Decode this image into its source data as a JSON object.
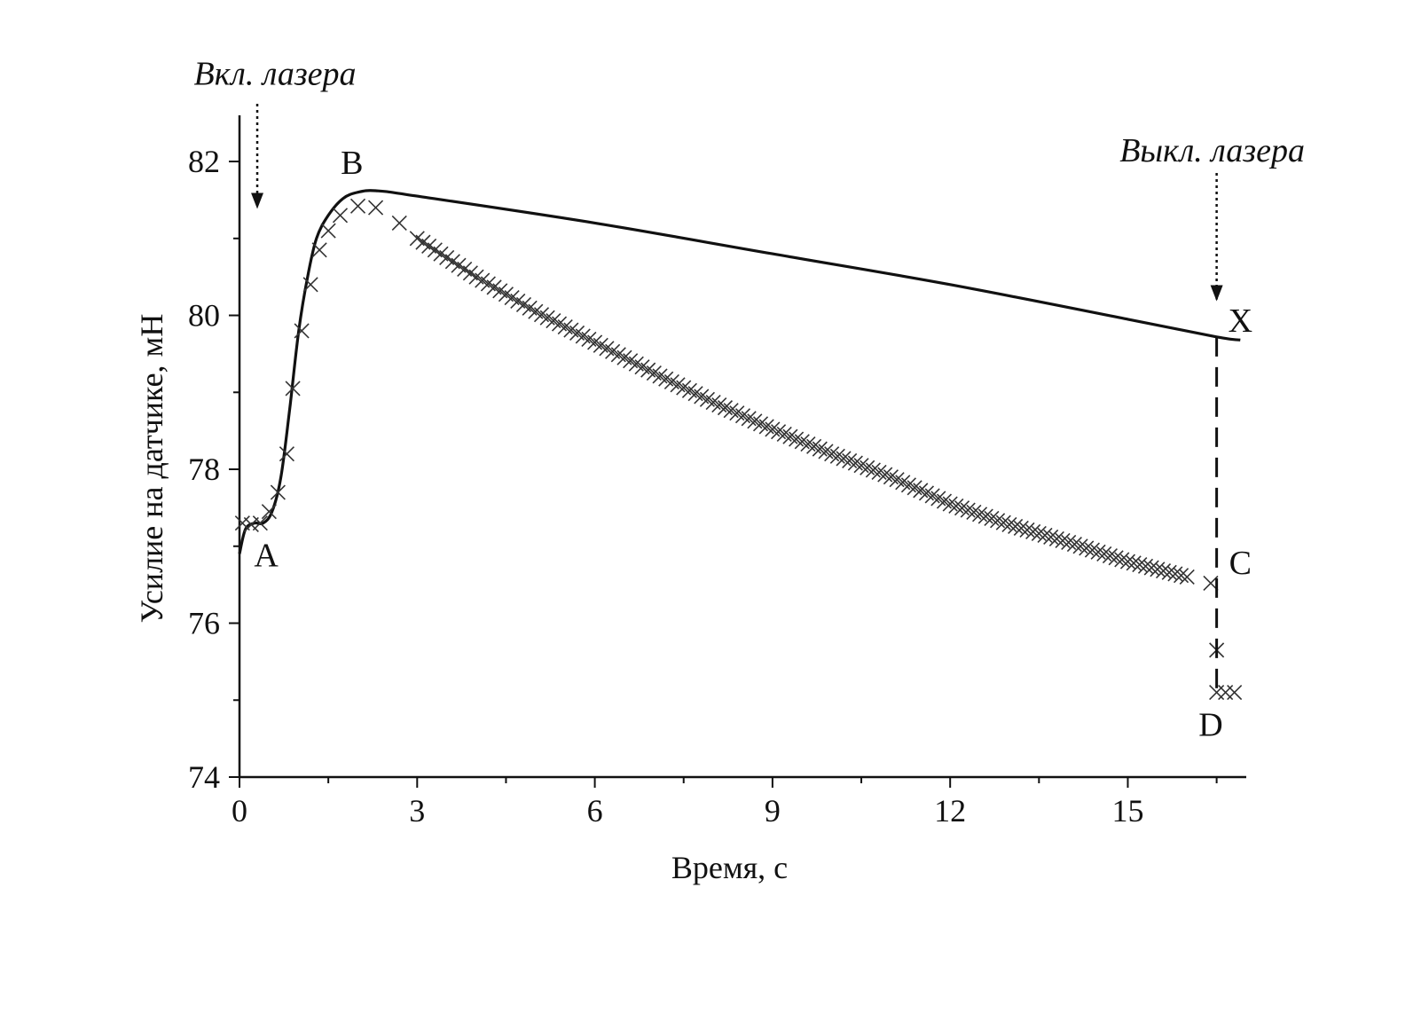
{
  "chart_data": {
    "type": "line",
    "xlabel": "Время, с",
    "ylabel": "Усилие на датчике, мН",
    "xlim": [
      0,
      17
    ],
    "ylim": [
      74,
      82.6
    ],
    "x_ticks": [
      0,
      3,
      6,
      9,
      12,
      15
    ],
    "x_tick_labels": [
      "0",
      "3",
      "6",
      "9",
      "12",
      "15"
    ],
    "y_ticks": [
      74,
      76,
      78,
      80,
      82
    ],
    "y_tick_labels": [
      "74",
      "76",
      "78",
      "80",
      "82"
    ],
    "grid": false,
    "legend": "none",
    "series": [
      {
        "style": "solid-line",
        "color": "#111111",
        "points": [
          [
            0,
            76.9
          ],
          [
            0.1,
            77.22
          ],
          [
            0.25,
            77.3
          ],
          [
            0.4,
            77.3
          ],
          [
            0.55,
            77.45
          ],
          [
            0.7,
            77.9
          ],
          [
            0.85,
            78.8
          ],
          [
            1.0,
            79.8
          ],
          [
            1.15,
            80.5
          ],
          [
            1.3,
            81.0
          ],
          [
            1.5,
            81.3
          ],
          [
            1.75,
            81.52
          ],
          [
            2.0,
            81.6
          ],
          [
            2.3,
            81.62
          ],
          [
            3,
            81.55
          ],
          [
            6,
            81.2
          ],
          [
            9,
            80.8
          ],
          [
            12,
            80.4
          ],
          [
            15,
            79.95
          ],
          [
            16.5,
            79.72
          ],
          [
            16.9,
            79.68
          ]
        ]
      },
      {
        "style": "x-markers",
        "color": "#333333",
        "points": [
          [
            0.05,
            77.3
          ],
          [
            0.2,
            77.28
          ],
          [
            0.35,
            77.3
          ],
          [
            0.5,
            77.45
          ],
          [
            0.65,
            77.7
          ],
          [
            0.8,
            78.2
          ],
          [
            0.9,
            79.05
          ],
          [
            1.05,
            79.8
          ],
          [
            1.2,
            80.4
          ],
          [
            1.35,
            80.85
          ],
          [
            1.5,
            81.1
          ],
          [
            1.7,
            81.3
          ],
          [
            2.0,
            81.42
          ],
          [
            2.3,
            81.4
          ],
          [
            2.7,
            81.2
          ],
          [
            3,
            81.0
          ],
          [
            4,
            80.5
          ],
          [
            5,
            80.05
          ],
          [
            6,
            79.65
          ],
          [
            7,
            79.25
          ],
          [
            8,
            78.87
          ],
          [
            9,
            78.52
          ],
          [
            10,
            78.2
          ],
          [
            11,
            77.9
          ],
          [
            12,
            77.55
          ],
          [
            13,
            77.28
          ],
          [
            14,
            77.05
          ],
          [
            15,
            76.8
          ],
          [
            16,
            76.6
          ],
          [
            16.4,
            76.52
          ],
          [
            16.5,
            75.65
          ],
          [
            16.5,
            75.1
          ],
          [
            16.65,
            75.1
          ],
          [
            16.8,
            75.1
          ]
        ]
      },
      {
        "style": "dashed-line",
        "color": "#111111",
        "points": [
          [
            16.5,
            79.72
          ],
          [
            16.5,
            75.1
          ]
        ]
      }
    ],
    "point_labels": [
      {
        "text": "A",
        "x": 0.45,
        "y": 76.9
      },
      {
        "text": "B",
        "x": 1.9,
        "y": 82.0
      },
      {
        "text": "X",
        "x": 16.9,
        "y": 79.95
      },
      {
        "text": "C",
        "x": 16.9,
        "y": 76.8
      },
      {
        "text": "D",
        "x": 16.4,
        "y": 74.7
      }
    ],
    "annotations": [
      {
        "text": "Вкл. лазера",
        "arrow_x": 0.3,
        "y_from": 82.75,
        "y_to": 81.2,
        "text_y": 83.0
      },
      {
        "text": "Выкл. лазера",
        "arrow_x": 16.5,
        "y_from": 81.85,
        "y_to": 80.0,
        "text_y": 82.0
      }
    ]
  }
}
